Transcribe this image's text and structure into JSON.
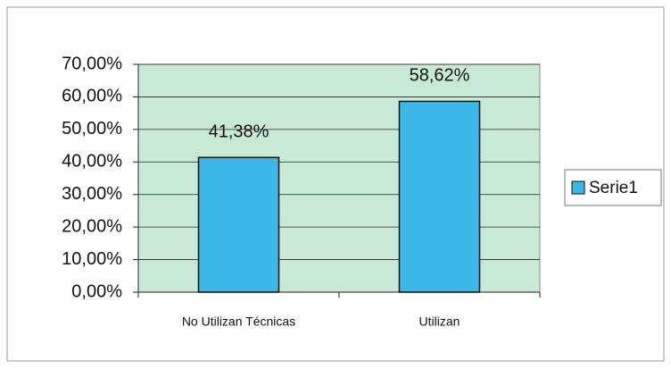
{
  "chart_data": {
    "type": "bar",
    "categories": [
      "No Utilizan Técnicas",
      "Utilizan"
    ],
    "series": [
      {
        "name": "Serie1",
        "color": "#3cb8e8",
        "values": [
          41.38,
          58.62
        ],
        "value_labels": [
          "41,38%",
          "58,62%"
        ]
      }
    ],
    "ylim": [
      0,
      70
    ],
    "yticks": [
      {
        "value": 0,
        "label": "0,00%"
      },
      {
        "value": 10,
        "label": "10,00%"
      },
      {
        "value": 20,
        "label": "20,00%"
      },
      {
        "value": 30,
        "label": "30,00%"
      },
      {
        "value": 40,
        "label": "40,00%"
      },
      {
        "value": 50,
        "label": "50,00%"
      },
      {
        "value": 60,
        "label": "60,00%"
      },
      {
        "value": 70,
        "label": "70,00%"
      }
    ],
    "grid": true,
    "legend": "right",
    "plot_background": "#c9e9d7"
  }
}
